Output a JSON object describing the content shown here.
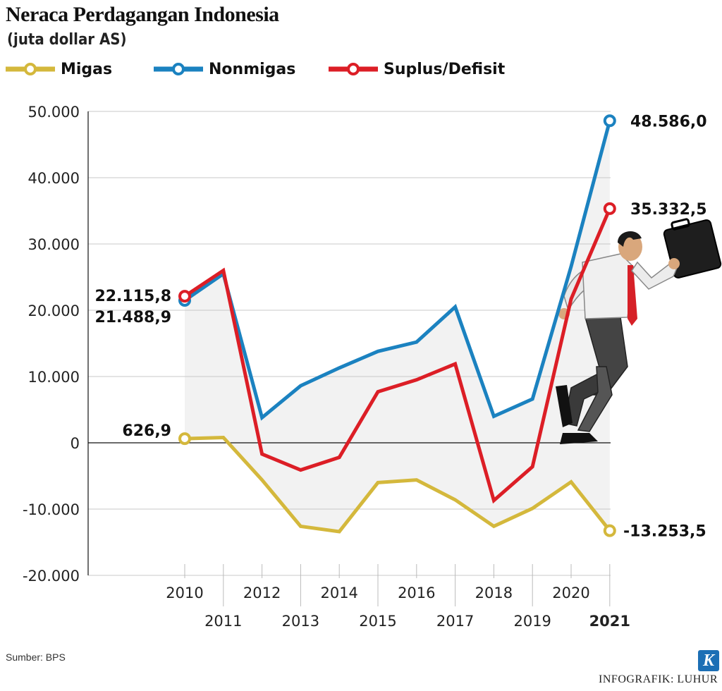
{
  "title": "Neraca Perdagangan Indonesia",
  "subtitle": "(juta dollar AS)",
  "legend": [
    {
      "label": "Migas",
      "color": "#d4b83c"
    },
    {
      "label": "Nonmigas",
      "color": "#1b82c0"
    },
    {
      "label": "Suplus/Defisit",
      "color": "#dc1e26"
    }
  ],
  "source": "Sumber: BPS",
  "credit": "INFOGRAFIK: LUHUR",
  "logo_letter": "K",
  "chart_data": {
    "type": "line",
    "title": "Neraca Perdagangan Indonesia",
    "ylabel": "(juta dollar AS)",
    "x": [
      "2010",
      "2011",
      "2012",
      "2013",
      "2014",
      "2015",
      "2016",
      "2017",
      "2018",
      "2019",
      "2020",
      "2021"
    ],
    "ylim": [
      -20000,
      50000
    ],
    "yticks": [
      50000,
      40000,
      30000,
      20000,
      10000,
      0,
      -10000,
      -20000
    ],
    "ytick_labels": [
      "50.000",
      "40.000",
      "30.000",
      "20.000",
      "10.000",
      "0",
      "-10.000",
      "-20.000"
    ],
    "series": [
      {
        "name": "Migas",
        "color": "#d4b83c",
        "values": [
          626.9,
          800,
          -5600,
          -12600,
          -13400,
          -6000,
          -5600,
          -8600,
          -12600,
          -9900,
          -5900,
          -13253.5
        ]
      },
      {
        "name": "Nonmigas",
        "color": "#1b82c0",
        "values": [
          21488.9,
          25500,
          3800,
          8600,
          11300,
          13800,
          15200,
          20500,
          4000,
          6600,
          26600,
          48586.0
        ]
      },
      {
        "name": "Suplus/Defisit",
        "color": "#dc1e26",
        "values": [
          22115.8,
          26000,
          -1700,
          -4100,
          -2200,
          7700,
          9500,
          11900,
          -8700,
          -3600,
          21700,
          35332.5
        ]
      }
    ],
    "annotations": [
      {
        "series": "Suplus/Defisit",
        "label": "22.115,8"
      },
      {
        "series": "Nonmigas",
        "label": "21.488,9"
      },
      {
        "series": "Migas",
        "label": "626,9"
      },
      {
        "series": "Nonmigas",
        "label": "48.586,0"
      },
      {
        "series": "Suplus/Defisit",
        "label": "35.332,5"
      },
      {
        "series": "Migas",
        "label": "-13.253,5"
      }
    ],
    "highlight_year": "2021",
    "grid": true
  }
}
